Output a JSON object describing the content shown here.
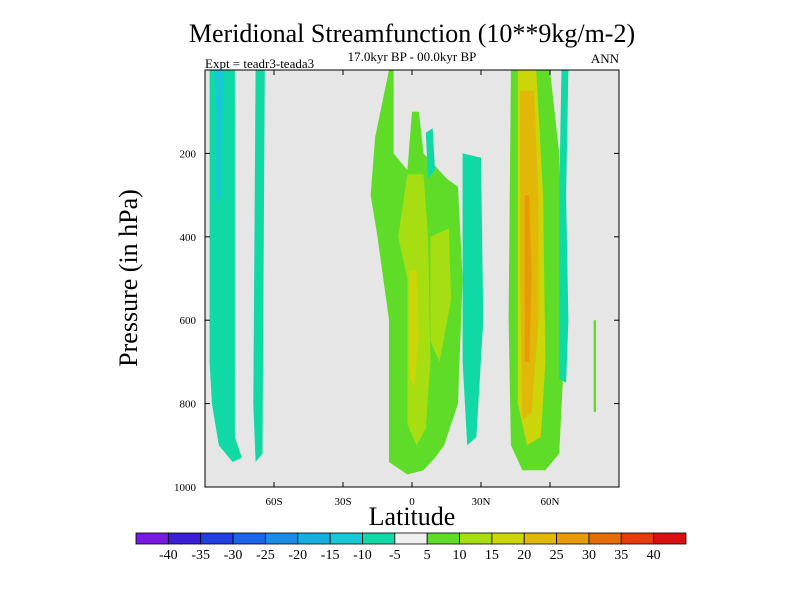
{
  "chart_data": {
    "type": "heatmap",
    "title": "Meridional Streamfunction (10**9kg/m-2)",
    "subtitle": "17.0kyr BP - 00.0kyr BP",
    "left_note": "Expt = teadr3-teada3",
    "right_note": "ANN",
    "xlabel": "Latitude",
    "ylabel": "Pressure (in hPa)",
    "xlim": [
      -90,
      90
    ],
    "ylim": [
      1000,
      0
    ],
    "x_ticks": [
      {
        "value": -60,
        "label": "60S"
      },
      {
        "value": -30,
        "label": "30S"
      },
      {
        "value": 0,
        "label": "0"
      },
      {
        "value": 30,
        "label": "30N"
      },
      {
        "value": 60,
        "label": "60N"
      }
    ],
    "y_ticks": [
      {
        "value": 200,
        "label": "200"
      },
      {
        "value": 400,
        "label": "400"
      },
      {
        "value": 600,
        "label": "600"
      },
      {
        "value": 800,
        "label": "800"
      },
      {
        "value": 1000,
        "label": "1000"
      }
    ],
    "background_color": "#e6e6e6",
    "colorbar": {
      "labels": [
        "-40",
        "-35",
        "-30",
        "-25",
        "-20",
        "-15",
        "-10",
        "-5",
        "5",
        "10",
        "15",
        "20",
        "25",
        "30",
        "35",
        "40"
      ],
      "colors": [
        "#7a1ae0",
        "#3a1fd6",
        "#2040e0",
        "#1a66e6",
        "#1a8ce6",
        "#19aee0",
        "#17c8d6",
        "#10d9a6",
        "#f0f0f0",
        "#5fdc28",
        "#a6de12",
        "#ccd40a",
        "#e2b808",
        "#e89a08",
        "#e66c08",
        "#e43c0c",
        "#d81212"
      ]
    },
    "regions": [
      {
        "name": "sh-negative-cell",
        "level": -10,
        "points": [
          [
            -88,
            0
          ],
          [
            -77,
            0
          ],
          [
            -77,
            880
          ],
          [
            -74,
            930
          ],
          [
            -78,
            940
          ],
          [
            -84,
            900
          ],
          [
            -87,
            800
          ],
          [
            -88,
            700
          ]
        ]
      },
      {
        "name": "sh-negative-inner",
        "level": -15,
        "points": [
          [
            -86,
            0
          ],
          [
            -82,
            0
          ],
          [
            -83,
            300
          ],
          [
            -85,
            320
          ],
          [
            -85,
            100
          ]
        ]
      },
      {
        "name": "sh-negative-strip",
        "level": -10,
        "points": [
          [
            -68,
            0
          ],
          [
            -64,
            0
          ],
          [
            -65,
            920
          ],
          [
            -68,
            940
          ],
          [
            -69,
            800
          ]
        ]
      },
      {
        "name": "tropical-positive",
        "level": 5,
        "points": [
          [
            -10,
            0
          ],
          [
            -8,
            0
          ],
          [
            -8,
            200
          ],
          [
            -2,
            240
          ],
          [
            0,
            100
          ],
          [
            3,
            100
          ],
          [
            5,
            200
          ],
          [
            15,
            260
          ],
          [
            20,
            280
          ],
          [
            22,
            500
          ],
          [
            20,
            800
          ],
          [
            14,
            900
          ],
          [
            10,
            930
          ],
          [
            5,
            960
          ],
          [
            -2,
            970
          ],
          [
            -10,
            940
          ],
          [
            -10,
            600
          ],
          [
            -15,
            400
          ],
          [
            -18,
            300
          ],
          [
            -16,
            160
          ]
        ]
      },
      {
        "name": "tropical-inner",
        "level": 10,
        "points": [
          [
            -2,
            250
          ],
          [
            5,
            250
          ],
          [
            7,
            400
          ],
          [
            8,
            700
          ],
          [
            6,
            860
          ],
          [
            2,
            900
          ],
          [
            -2,
            850
          ],
          [
            -2,
            500
          ],
          [
            -6,
            400
          ]
        ]
      },
      {
        "name": "tropical-inner-b",
        "level": 10,
        "points": [
          [
            8,
            400
          ],
          [
            16,
            380
          ],
          [
            17,
            550
          ],
          [
            12,
            700
          ],
          [
            8,
            650
          ]
        ]
      },
      {
        "name": "tropical-core",
        "level": 15,
        "points": [
          [
            -1,
            480
          ],
          [
            2,
            480
          ],
          [
            3,
            640
          ],
          [
            1,
            760
          ],
          [
            -1,
            740
          ]
        ]
      },
      {
        "name": "nh-negative-small",
        "level": -10,
        "points": [
          [
            6,
            150
          ],
          [
            9,
            140
          ],
          [
            10,
            240
          ],
          [
            7,
            260
          ]
        ]
      },
      {
        "name": "nh-negative-cell",
        "level": -10,
        "points": [
          [
            22,
            200
          ],
          [
            30,
            210
          ],
          [
            31,
            600
          ],
          [
            28,
            880
          ],
          [
            24,
            900
          ],
          [
            22,
            700
          ]
        ]
      },
      {
        "name": "nh-positive-cell",
        "level": 5,
        "points": [
          [
            43,
            0
          ],
          [
            60,
            0
          ],
          [
            64,
            200
          ],
          [
            66,
            700
          ],
          [
            64,
            920
          ],
          [
            58,
            960
          ],
          [
            48,
            960
          ],
          [
            43,
            900
          ],
          [
            42,
            600
          ]
        ]
      },
      {
        "name": "nh-positive-20",
        "level": 15,
        "points": [
          [
            46,
            0
          ],
          [
            54,
            0
          ],
          [
            57,
            300
          ],
          [
            58,
            700
          ],
          [
            56,
            880
          ],
          [
            50,
            900
          ],
          [
            46,
            800
          ]
        ]
      },
      {
        "name": "nh-positive-25",
        "level": 20,
        "points": [
          [
            47,
            50
          ],
          [
            53,
            50
          ],
          [
            55,
            300
          ],
          [
            55,
            600
          ],
          [
            52,
            820
          ],
          [
            48,
            840
          ],
          [
            47,
            500
          ]
        ]
      },
      {
        "name": "nh-positive-30",
        "level": 25,
        "points": [
          [
            49,
            300
          ],
          [
            51,
            300
          ],
          [
            52,
            500
          ],
          [
            51,
            700
          ],
          [
            49,
            700
          ]
        ]
      },
      {
        "name": "nh-negative-right",
        "level": -10,
        "points": [
          [
            65,
            0
          ],
          [
            68,
            0
          ],
          [
            67,
            300
          ],
          [
            68,
            600
          ],
          [
            67,
            750
          ],
          [
            64,
            740
          ],
          [
            64,
            300
          ]
        ]
      },
      {
        "name": "far-north-blip",
        "level": 5,
        "points": [
          [
            79,
            600
          ],
          [
            80,
            600
          ],
          [
            80,
            820
          ],
          [
            79,
            820
          ]
        ]
      }
    ]
  }
}
